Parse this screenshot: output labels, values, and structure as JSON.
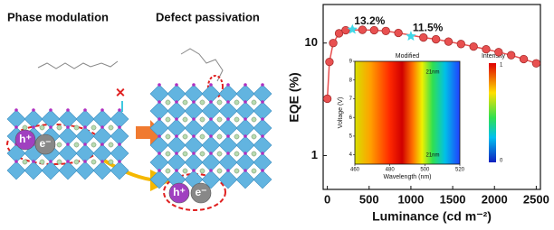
{
  "schematic": {
    "titles": [
      "Phase modulation",
      "Defect passivation"
    ],
    "carriers": [
      "h⁺",
      "e⁻",
      "h⁺",
      "e⁻"
    ]
  },
  "chart_data": {
    "type": "scatter",
    "log_y": true,
    "xlabel": "Luminance (cd m⁻²)",
    "ylabel": "EQE (%)",
    "x": [
      0,
      25,
      70,
      140,
      220,
      420,
      560,
      700,
      850,
      1150,
      1300,
      1450,
      1600,
      1750,
      1900,
      2050,
      2200,
      2350,
      2500
    ],
    "values": [
      3.2,
      6.8,
      10.0,
      12.2,
      13.0,
      13.1,
      13.0,
      12.8,
      12.3,
      11.2,
      10.8,
      10.3,
      9.8,
      9.3,
      8.8,
      8.3,
      7.8,
      7.2,
      6.6
    ],
    "color": "#e85050",
    "marker_color": "#40d8e8",
    "annotations": [
      {
        "x": 300,
        "y": 13.2,
        "text": "13.2%"
      },
      {
        "x": 1000,
        "y": 11.5,
        "text": "11.5%"
      }
    ],
    "xlim": [
      -50,
      2550
    ],
    "xticks": [
      0,
      500,
      1000,
      1500,
      2000,
      2500
    ],
    "ylim": [
      0.5,
      22
    ],
    "yticks": [
      1,
      10
    ],
    "inset": {
      "type": "heatmap",
      "title": "Modified",
      "colorbar_label": "Intensity",
      "xlabel": "Wavelength (nm)",
      "ylabel": "Voltage (V)",
      "xlim": [
        460,
        520
      ],
      "xticks": [
        460,
        480,
        500,
        520
      ],
      "ylim": [
        3.5,
        9
      ],
      "yticks": [
        4,
        5,
        6,
        7,
        8,
        9
      ],
      "colorbar_ticks": [
        1,
        0
      ],
      "annotations": [
        "21nm",
        "21nm"
      ]
    }
  }
}
